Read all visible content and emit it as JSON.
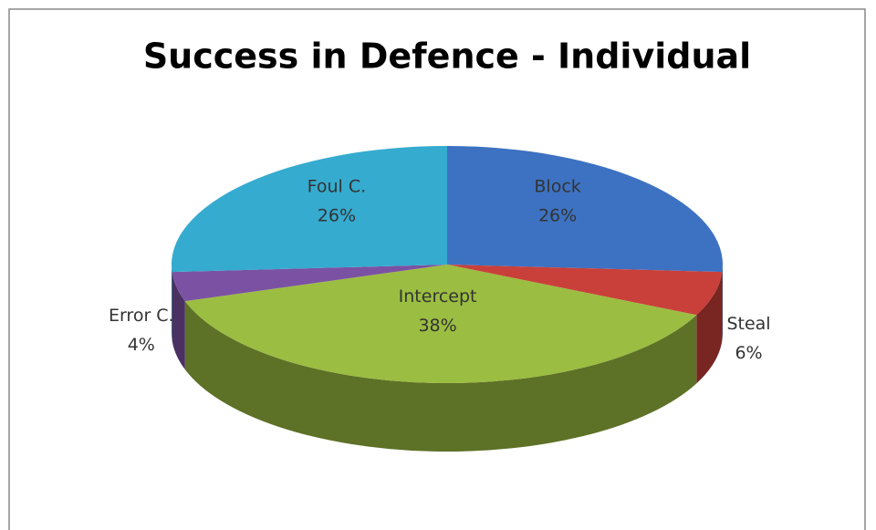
{
  "chart_data": {
    "type": "pie",
    "title": "Success in Defence - Individual",
    "categories": [
      "Block",
      "Steal",
      "Intercept",
      "Error C.",
      "Foul C."
    ],
    "values": [
      26,
      6,
      38,
      4,
      26
    ],
    "value_labels": [
      "26%",
      "6%",
      "38%",
      "4%",
      "26%"
    ],
    "colors": [
      "#3d72c2",
      "#c9403a",
      "#9bbd41",
      "#7b52a3",
      "#35abcf"
    ]
  }
}
